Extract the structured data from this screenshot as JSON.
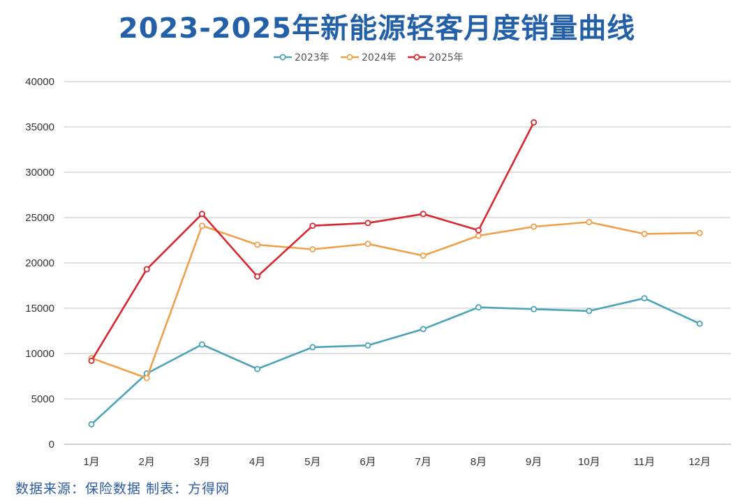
{
  "chart_data": {
    "type": "line",
    "title": "2023-2025年新能源轻客月度销量曲线",
    "categories": [
      "1月",
      "2月",
      "3月",
      "4月",
      "5月",
      "6月",
      "7月",
      "8月",
      "9月",
      "10月",
      "11月",
      "12月"
    ],
    "ylim": [
      0,
      40000
    ],
    "yticks": [
      0,
      5000,
      10000,
      15000,
      20000,
      25000,
      30000,
      35000,
      40000
    ],
    "grid": true,
    "legend_position": "top-center",
    "series": [
      {
        "name": "2023年",
        "color": "#4ba3b8",
        "values": [
          2200,
          7800,
          11000,
          8300,
          10700,
          10900,
          12700,
          15100,
          14900,
          14700,
          16100,
          13300
        ]
      },
      {
        "name": "2024年",
        "color": "#f0a04b",
        "values": [
          9500,
          7300,
          24100,
          22000,
          21500,
          22100,
          20800,
          23000,
          24000,
          24500,
          23200,
          23300
        ]
      },
      {
        "name": "2025年",
        "color": "#d9262e",
        "values": [
          9200,
          19300,
          25400,
          18500,
          24100,
          24400,
          25400,
          23600,
          35500,
          null,
          null,
          null
        ]
      }
    ]
  },
  "footer": {
    "source": "数据来源：保险数据 制表：方得网"
  }
}
